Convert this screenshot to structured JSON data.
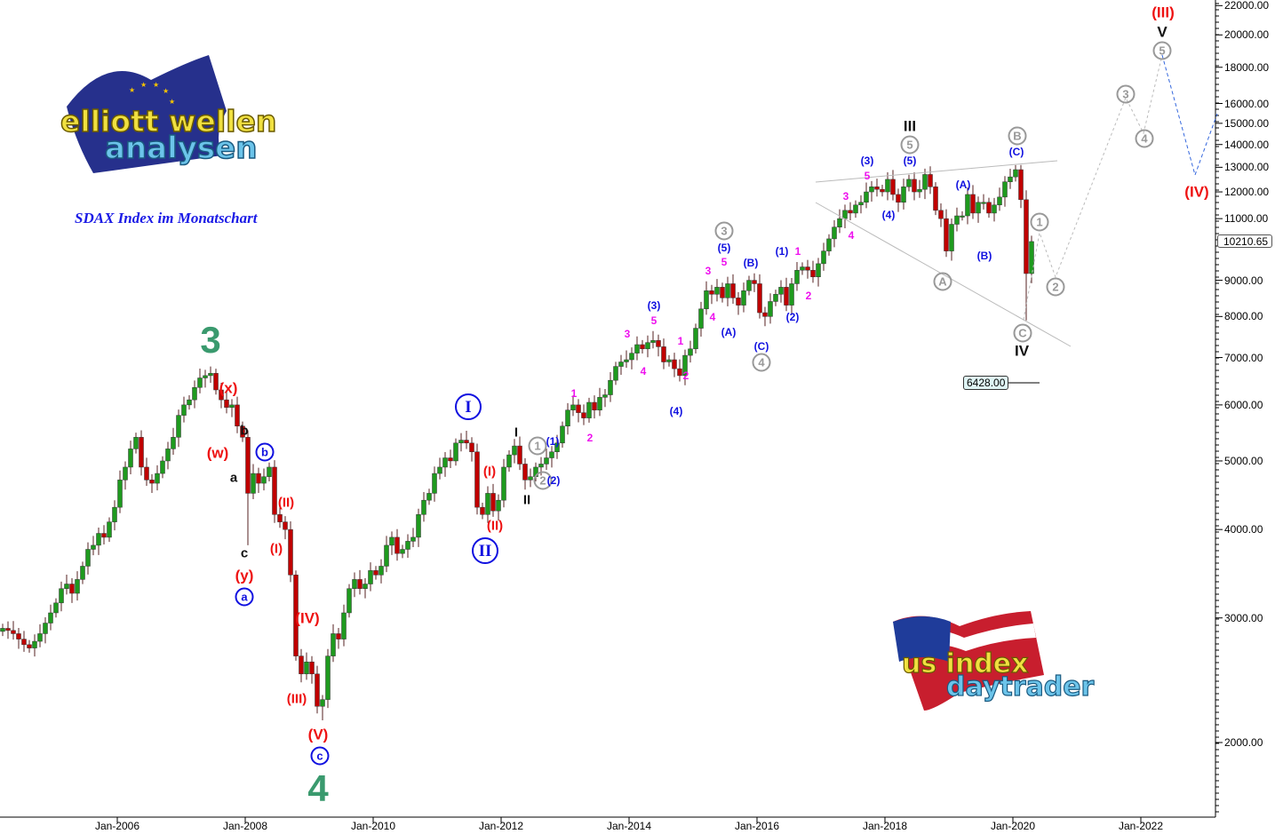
{
  "title": "SDAX Index im Monatschart",
  "logos": {
    "top_left": "elliott wellen analysen",
    "bottom_right": "us index daytrader"
  },
  "colors": {
    "bull": "#1e9a1e",
    "bear": "#c00000",
    "green": "#3a9a6e",
    "red": "#ee1111",
    "blue": "#1010e0",
    "black": "#111111",
    "magenta": "#ee11ee",
    "gray": "#999999",
    "projection_gray": "#bbbbbb",
    "projection_blue": "#3366dd"
  },
  "chart_data": {
    "type": "candlestick",
    "title": "SDAX Index im Monatschart",
    "interval": "monthly",
    "start_month": "2004-03",
    "y_scale": "log",
    "ylim": [
      1700,
      22500
    ],
    "y_ticks": [
      "22000.00",
      "20000.00",
      "18000.00",
      "16000.00",
      "15000.00",
      "14000.00",
      "13000.00",
      "12000.00",
      "11000.00",
      "9000.00",
      "8000.00",
      "7000.00",
      "6000.00",
      "5000.00",
      "4000.00",
      "3000.00",
      "2000.00"
    ],
    "x_ticks": [
      "Jan-2006",
      "Jan-2008",
      "Jan-2010",
      "Jan-2012",
      "Jan-2014",
      "Jan-2016",
      "Jan-2018",
      "Jan-2020",
      "Jan-2022"
    ],
    "close": [
      2900,
      2880,
      2850,
      2800,
      2750,
      2720,
      2780,
      2850,
      2950,
      3050,
      3150,
      3300,
      3350,
      3250,
      3400,
      3550,
      3750,
      3800,
      3950,
      3900,
      4100,
      4300,
      4700,
      4900,
      5200,
      5400,
      4900,
      4700,
      4650,
      4800,
      5000,
      5200,
      5400,
      5800,
      6000,
      6100,
      6350,
      6550,
      6600,
      6650,
      6300,
      6100,
      5950,
      6000,
      5600,
      5400,
      4500,
      4800,
      4650,
      4750,
      4900,
      4200,
      4100,
      4000,
      3450,
      2650,
      2500,
      2600,
      2500,
      2250,
      2300,
      2650,
      2850,
      2800,
      3050,
      3300,
      3400,
      3300,
      3350,
      3500,
      3450,
      3550,
      3800,
      3900,
      3700,
      3750,
      3850,
      3900,
      4200,
      4400,
      4500,
      4800,
      4900,
      5050,
      5000,
      5300,
      5350,
      5300,
      5150,
      4300,
      4200,
      4500,
      4250,
      4400,
      4900,
      5100,
      5250,
      4950,
      4700,
      4750,
      4900,
      4950,
      5050,
      5150,
      5300,
      5600,
      5900,
      6000,
      5850,
      5750,
      6050,
      5900,
      6150,
      6200,
      6500,
      6800,
      6900,
      6950,
      7100,
      7300,
      7200,
      7350,
      7400,
      7250,
      6900,
      6950,
      6750,
      6600,
      7050,
      7200,
      7700,
      8200,
      8700,
      8600,
      8800,
      8500,
      8900,
      8500,
      8300,
      8700,
      9000,
      8900,
      8100,
      8000,
      8400,
      8600,
      8800,
      8300,
      8900,
      9300,
      9400,
      9300,
      9100,
      9500,
      9900,
      10300,
      10700,
      11000,
      11300,
      11200,
      11500,
      11600,
      12000,
      12200,
      12100,
      12000,
      12500,
      11900,
      11600,
      12200,
      12500,
      12000,
      12100,
      12700,
      12200,
      11300,
      11000,
      9900,
      10800,
      11100,
      11100,
      11900,
      11200,
      11600,
      11600,
      11200,
      11500,
      11800,
      12400,
      12600,
      12900,
      11700,
      9200,
      10210.65
    ],
    "notable_extremes": [
      {
        "month": "2007-06",
        "high": 6800
      },
      {
        "month": "2008-01",
        "low": 3800
      },
      {
        "month": "2009-03",
        "low": 2150
      },
      {
        "month": "2020-02",
        "high": 13100
      },
      {
        "month": "2020-03",
        "low": 7900
      }
    ],
    "last_price": "10210.65",
    "marked_level": "6428.00",
    "projection_waves": [
      "1",
      "2",
      "3",
      "4",
      "5",
      "(IV)"
    ]
  },
  "annotations": [
    {
      "text": "3",
      "color": "green",
      "kind": "huge"
    },
    {
      "text": "4",
      "color": "green",
      "kind": "huge"
    },
    {
      "text": "(x)",
      "color": "red",
      "kind": "roman"
    },
    {
      "text": "(w)",
      "color": "red",
      "kind": "roman"
    },
    {
      "text": "b",
      "color": "black",
      "kind": "plain"
    },
    {
      "text": "a",
      "color": "black",
      "kind": "plain"
    },
    {
      "text": "c",
      "color": "black",
      "kind": "plain"
    },
    {
      "text": "(y)",
      "color": "red",
      "kind": "roman"
    },
    {
      "text": "a",
      "color": "blue",
      "kind": "circle"
    },
    {
      "text": "b",
      "color": "blue",
      "kind": "circle"
    },
    {
      "text": "(II)",
      "color": "red",
      "kind": "plain"
    },
    {
      "text": "(I)",
      "color": "red",
      "kind": "plain"
    },
    {
      "text": "(IV)",
      "color": "red",
      "kind": "roman"
    },
    {
      "text": "(III)",
      "color": "red",
      "kind": "plain"
    },
    {
      "text": "(V)",
      "color": "red",
      "kind": "roman"
    },
    {
      "text": "c",
      "color": "blue",
      "kind": "circle"
    },
    {
      "text": "I",
      "color": "blue",
      "kind": "bigcircle"
    },
    {
      "text": "II",
      "color": "blue",
      "kind": "bigcircle"
    },
    {
      "text": "(I)",
      "color": "red",
      "kind": "plain"
    },
    {
      "text": "(II)",
      "color": "red",
      "kind": "plain"
    },
    {
      "text": "I",
      "color": "black",
      "kind": "plain"
    },
    {
      "text": "II",
      "color": "black",
      "kind": "plain"
    },
    {
      "text": "1",
      "color": "gray",
      "kind": "circle"
    },
    {
      "text": "(1)",
      "color": "blue",
      "kind": "small"
    },
    {
      "text": "2",
      "color": "gray",
      "kind": "circle"
    },
    {
      "text": "(2)",
      "color": "blue",
      "kind": "small"
    },
    {
      "text": "1",
      "color": "magenta",
      "kind": "small"
    },
    {
      "text": "2",
      "color": "magenta",
      "kind": "small"
    },
    {
      "text": "3",
      "color": "magenta",
      "kind": "small"
    },
    {
      "text": "4",
      "color": "magenta",
      "kind": "small"
    },
    {
      "text": "(3)",
      "color": "blue",
      "kind": "small"
    },
    {
      "text": "5",
      "color": "magenta",
      "kind": "small"
    },
    {
      "text": "(4)",
      "color": "blue",
      "kind": "small"
    },
    {
      "text": "1",
      "color": "magenta",
      "kind": "small"
    },
    {
      "text": "2",
      "color": "magenta",
      "kind": "small"
    },
    {
      "text": "3",
      "color": "magenta",
      "kind": "small"
    },
    {
      "text": "4",
      "color": "magenta",
      "kind": "small"
    },
    {
      "text": "3",
      "color": "gray",
      "kind": "circle"
    },
    {
      "text": "(5)",
      "color": "blue",
      "kind": "small"
    },
    {
      "text": "5",
      "color": "magenta",
      "kind": "small"
    },
    {
      "text": "(A)",
      "color": "blue",
      "kind": "small"
    },
    {
      "text": "(B)",
      "color": "blue",
      "kind": "small"
    },
    {
      "text": "(C)",
      "color": "blue",
      "kind": "small"
    },
    {
      "text": "4",
      "color": "gray",
      "kind": "circle"
    },
    {
      "text": "(1)",
      "color": "blue",
      "kind": "small"
    },
    {
      "text": "1",
      "color": "magenta",
      "kind": "small"
    },
    {
      "text": "(2)",
      "color": "blue",
      "kind": "small"
    },
    {
      "text": "2",
      "color": "magenta",
      "kind": "small"
    },
    {
      "text": "3",
      "color": "magenta",
      "kind": "small"
    },
    {
      "text": "4",
      "color": "magenta",
      "kind": "small"
    },
    {
      "text": "(3)",
      "color": "blue",
      "kind": "small"
    },
    {
      "text": "5",
      "color": "magenta",
      "kind": "small"
    },
    {
      "text": "(4)",
      "color": "blue",
      "kind": "small"
    },
    {
      "text": "III",
      "color": "black",
      "kind": "roman"
    },
    {
      "text": "5",
      "color": "gray",
      "kind": "circle"
    },
    {
      "text": "(5)",
      "color": "blue",
      "kind": "small"
    },
    {
      "text": "(A)",
      "color": "blue",
      "kind": "small"
    },
    {
      "text": "A",
      "color": "gray",
      "kind": "circle"
    },
    {
      "text": "(B)",
      "color": "blue",
      "kind": "small"
    },
    {
      "text": "B",
      "color": "gray",
      "kind": "circle"
    },
    {
      "text": "(C)",
      "color": "blue",
      "kind": "small"
    },
    {
      "text": "C",
      "color": "gray",
      "kind": "circle"
    },
    {
      "text": "IV",
      "color": "black",
      "kind": "roman"
    },
    {
      "text": "1",
      "color": "gray",
      "kind": "circle"
    },
    {
      "text": "2",
      "color": "gray",
      "kind": "circle"
    },
    {
      "text": "3",
      "color": "gray",
      "kind": "circle"
    },
    {
      "text": "4",
      "color": "gray",
      "kind": "circle"
    },
    {
      "text": "5",
      "color": "gray",
      "kind": "circle"
    },
    {
      "text": "V",
      "color": "black",
      "kind": "roman"
    },
    {
      "text": "(III)",
      "color": "red",
      "kind": "roman"
    },
    {
      "text": "(IV)",
      "color": "red",
      "kind": "roman"
    }
  ]
}
